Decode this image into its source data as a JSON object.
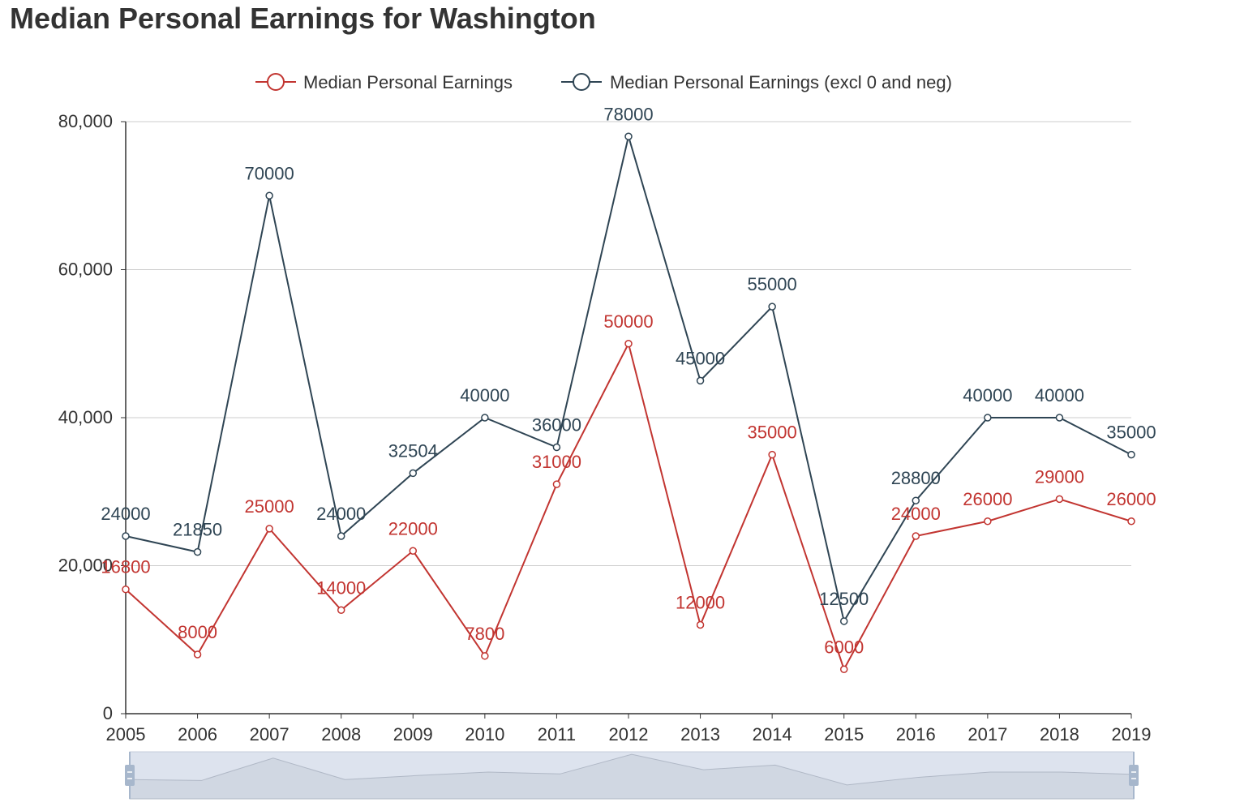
{
  "title": "Median Personal Earnings for Washington",
  "colors": {
    "series_1": "#c23531",
    "series_2": "#2f4554",
    "grid": "#cccccc",
    "axis": "#333333",
    "zoom_fill": "#dde3ee",
    "zoom_handle": "#a7b7cc"
  },
  "chart_data": {
    "type": "line",
    "x": [
      "2005",
      "2006",
      "2007",
      "2008",
      "2009",
      "2010",
      "2011",
      "2012",
      "2013",
      "2014",
      "2015",
      "2016",
      "2017",
      "2018",
      "2019"
    ],
    "series": [
      {
        "name": "Median Personal Earnings",
        "values": [
          16800,
          8000,
          25000,
          14000,
          22000,
          7800,
          31000,
          50000,
          12000,
          35000,
          6000,
          24000,
          26000,
          29000,
          26000
        ]
      },
      {
        "name": "Median Personal Earnings (excl 0 and neg)",
        "values": [
          24000,
          21850,
          70000,
          24000,
          32504,
          40000,
          36000,
          78000,
          45000,
          55000,
          12500,
          28800,
          40000,
          40000,
          35000
        ]
      }
    ],
    "ylim": [
      0,
      80000
    ],
    "yticks": [
      0,
      20000,
      40000,
      60000,
      80000
    ],
    "ytick_labels": [
      "0",
      "20,000",
      "40,000",
      "60,000",
      "80,000"
    ],
    "grid": true,
    "legend_position": "top-center",
    "data_labels": true,
    "data_zoom_slider": true
  }
}
